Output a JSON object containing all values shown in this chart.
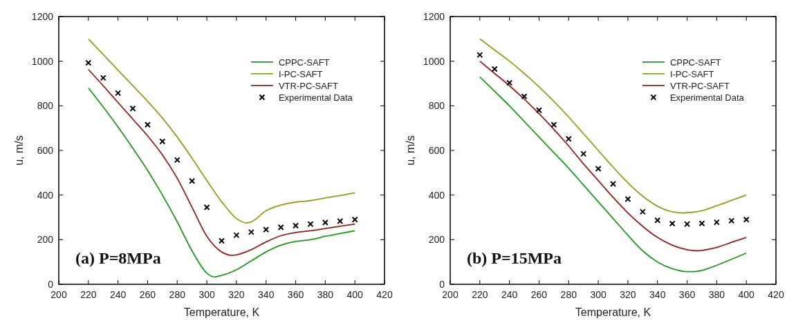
{
  "chart_data": [
    {
      "type": "line",
      "xlabel": "Temperature, K",
      "ylabel": "u, m/s",
      "xlim": [
        200,
        420
      ],
      "ylim": [
        0,
        1200
      ],
      "xticks": [
        200,
        220,
        240,
        260,
        280,
        300,
        320,
        340,
        360,
        380,
        400,
        420
      ],
      "yticks": [
        0,
        200,
        400,
        600,
        800,
        1000,
        1200
      ],
      "legend": "top right",
      "annotations": [
        "(a) P=8MPa"
      ],
      "series": [
        {
          "name": "CPPC-SAFT",
          "color": "#1c9a1c",
          "x": [
            220,
            230,
            240,
            250,
            260,
            270,
            280,
            290,
            300,
            305,
            310,
            320,
            330,
            340,
            350,
            360,
            370,
            380,
            390,
            400
          ],
          "values": [
            880,
            795,
            705,
            610,
            510,
            400,
            280,
            150,
            50,
            33,
            40,
            65,
            105,
            145,
            175,
            192,
            200,
            215,
            228,
            240
          ]
        },
        {
          "name": "I-PC-SAFT",
          "color": "#9a9a1c",
          "x": [
            220,
            230,
            240,
            250,
            260,
            270,
            280,
            290,
            300,
            310,
            320,
            327,
            330,
            340,
            350,
            360,
            370,
            380,
            390,
            400
          ],
          "values": [
            1100,
            1030,
            960,
            890,
            820,
            745,
            660,
            565,
            465,
            370,
            295,
            275,
            280,
            330,
            355,
            368,
            375,
            387,
            398,
            410
          ]
        },
        {
          "name": "VTR-PC-SAFT",
          "color": "#9a1c1c",
          "x": [
            220,
            230,
            240,
            250,
            260,
            270,
            280,
            290,
            300,
            310,
            317,
            320,
            330,
            340,
            350,
            360,
            370,
            380,
            390,
            400
          ],
          "values": [
            963,
            890,
            815,
            740,
            665,
            580,
            475,
            345,
            215,
            145,
            130,
            132,
            155,
            190,
            218,
            232,
            240,
            250,
            260,
            270
          ]
        },
        {
          "name": "Experimental Data",
          "type": "scatter",
          "marker": "cross",
          "color": "#000000",
          "x": [
            220,
            230,
            240,
            250,
            260,
            270,
            280,
            290,
            300,
            310,
            320,
            330,
            340,
            350,
            360,
            370,
            380,
            390,
            400
          ],
          "values": [
            993,
            925,
            857,
            788,
            715,
            640,
            557,
            463,
            345,
            195,
            220,
            234,
            245,
            255,
            263,
            270,
            277,
            283,
            290
          ]
        }
      ]
    },
    {
      "type": "line",
      "xlabel": "Temperature, K",
      "ylabel": "u, m/s",
      "xlim": [
        200,
        420
      ],
      "ylim": [
        0,
        1200
      ],
      "xticks": [
        200,
        220,
        240,
        260,
        280,
        300,
        320,
        340,
        360,
        380,
        400,
        420
      ],
      "yticks": [
        0,
        200,
        400,
        600,
        800,
        1000,
        1200
      ],
      "legend": "top right",
      "annotations": [
        "(b) P=15MPa"
      ],
      "series": [
        {
          "name": "CPPC-SAFT",
          "color": "#1c9a1c",
          "x": [
            220,
            230,
            240,
            250,
            260,
            270,
            280,
            290,
            300,
            310,
            320,
            330,
            340,
            350,
            360,
            365,
            370,
            380,
            390,
            400
          ],
          "values": [
            930,
            865,
            800,
            730,
            660,
            590,
            520,
            445,
            370,
            295,
            220,
            150,
            100,
            70,
            57,
            57,
            62,
            85,
            112,
            140
          ]
        },
        {
          "name": "I-PC-SAFT",
          "color": "#9a9a1c",
          "x": [
            220,
            230,
            240,
            250,
            260,
            270,
            280,
            290,
            300,
            310,
            320,
            330,
            340,
            350,
            357,
            360,
            370,
            380,
            390,
            400
          ],
          "values": [
            1100,
            1050,
            1000,
            945,
            885,
            820,
            750,
            675,
            600,
            525,
            455,
            395,
            350,
            325,
            320,
            321,
            330,
            352,
            376,
            400
          ]
        },
        {
          "name": "VTR-PC-SAFT",
          "color": "#9a1c1c",
          "x": [
            220,
            230,
            240,
            250,
            260,
            270,
            280,
            290,
            300,
            310,
            320,
            330,
            340,
            350,
            360,
            367,
            370,
            380,
            390,
            400
          ],
          "values": [
            1000,
            945,
            890,
            830,
            765,
            695,
            620,
            540,
            465,
            390,
            320,
            260,
            210,
            175,
            155,
            150,
            152,
            165,
            188,
            210
          ]
        },
        {
          "name": "Experimental Data",
          "type": "scatter",
          "marker": "cross",
          "color": "#000000",
          "x": [
            220,
            230,
            240,
            250,
            260,
            270,
            280,
            290,
            300,
            310,
            320,
            330,
            340,
            350,
            360,
            370,
            380,
            390,
            400
          ],
          "values": [
            1028,
            965,
            903,
            842,
            780,
            715,
            652,
            585,
            518,
            450,
            382,
            325,
            287,
            272,
            270,
            273,
            278,
            285,
            290
          ]
        }
      ]
    }
  ]
}
